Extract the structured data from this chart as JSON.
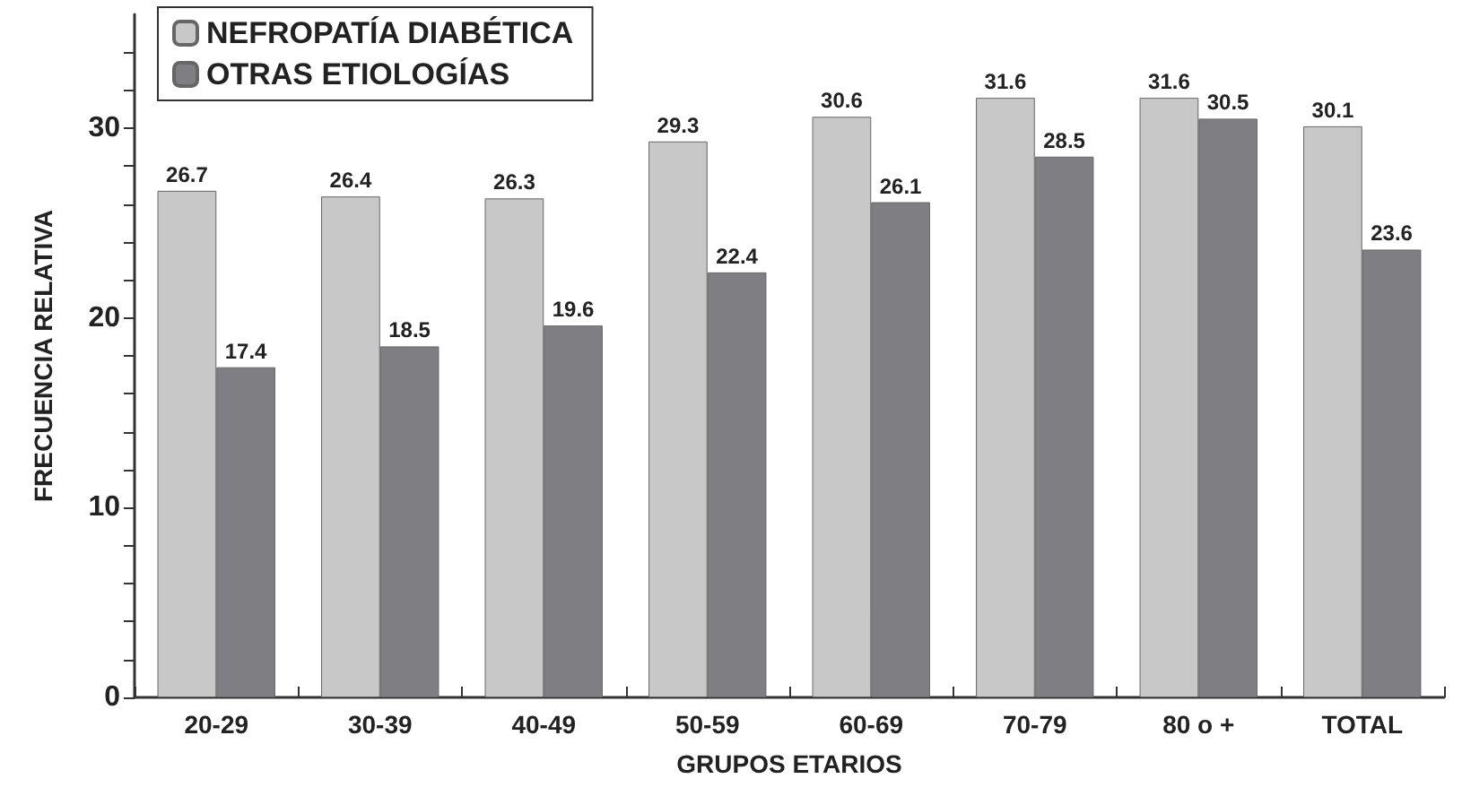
{
  "chart_data": {
    "type": "bar",
    "xlabel": "GRUPOS ETARIOS",
    "ylabel": "FRECUENCIA RELATIVA",
    "categories": [
      "20-29",
      "30-39",
      "40-49",
      "50-59",
      "60-69",
      "70-79",
      "80 o +",
      "TOTAL"
    ],
    "series": [
      {
        "name": "NEFROPATÍA DIABÉTICA",
        "color": "#c8c8c8",
        "values": [
          26.7,
          26.4,
          26.3,
          29.3,
          30.6,
          31.6,
          31.6,
          30.1
        ]
      },
      {
        "name": "OTRAS ETIOLOGÍAS",
        "color": "#7f7f83",
        "values": [
          17.4,
          18.5,
          19.6,
          22.4,
          26.1,
          28.5,
          30.5,
          23.6
        ]
      }
    ],
    "ylim": [
      0,
      36
    ],
    "yticks": [
      0,
      {
        "value": 2,
        "label": null
      },
      {
        "value": 4,
        "label": null
      },
      {
        "value": 6,
        "label": null
      },
      {
        "value": 8,
        "label": null
      },
      10,
      {
        "value": 12,
        "label": null
      },
      {
        "value": 14,
        "label": null
      },
      {
        "value": 16,
        "label": null
      },
      {
        "value": 18,
        "label": null
      },
      20,
      {
        "value": 22,
        "label": null
      },
      {
        "value": 24,
        "label": null
      },
      {
        "value": 26,
        "label": null
      },
      {
        "value": 28,
        "label": null
      },
      30,
      {
        "value": 32,
        "label": null
      },
      {
        "value": 34,
        "label": null
      }
    ],
    "data_labels": true,
    "grid": false,
    "legend": "top left"
  }
}
